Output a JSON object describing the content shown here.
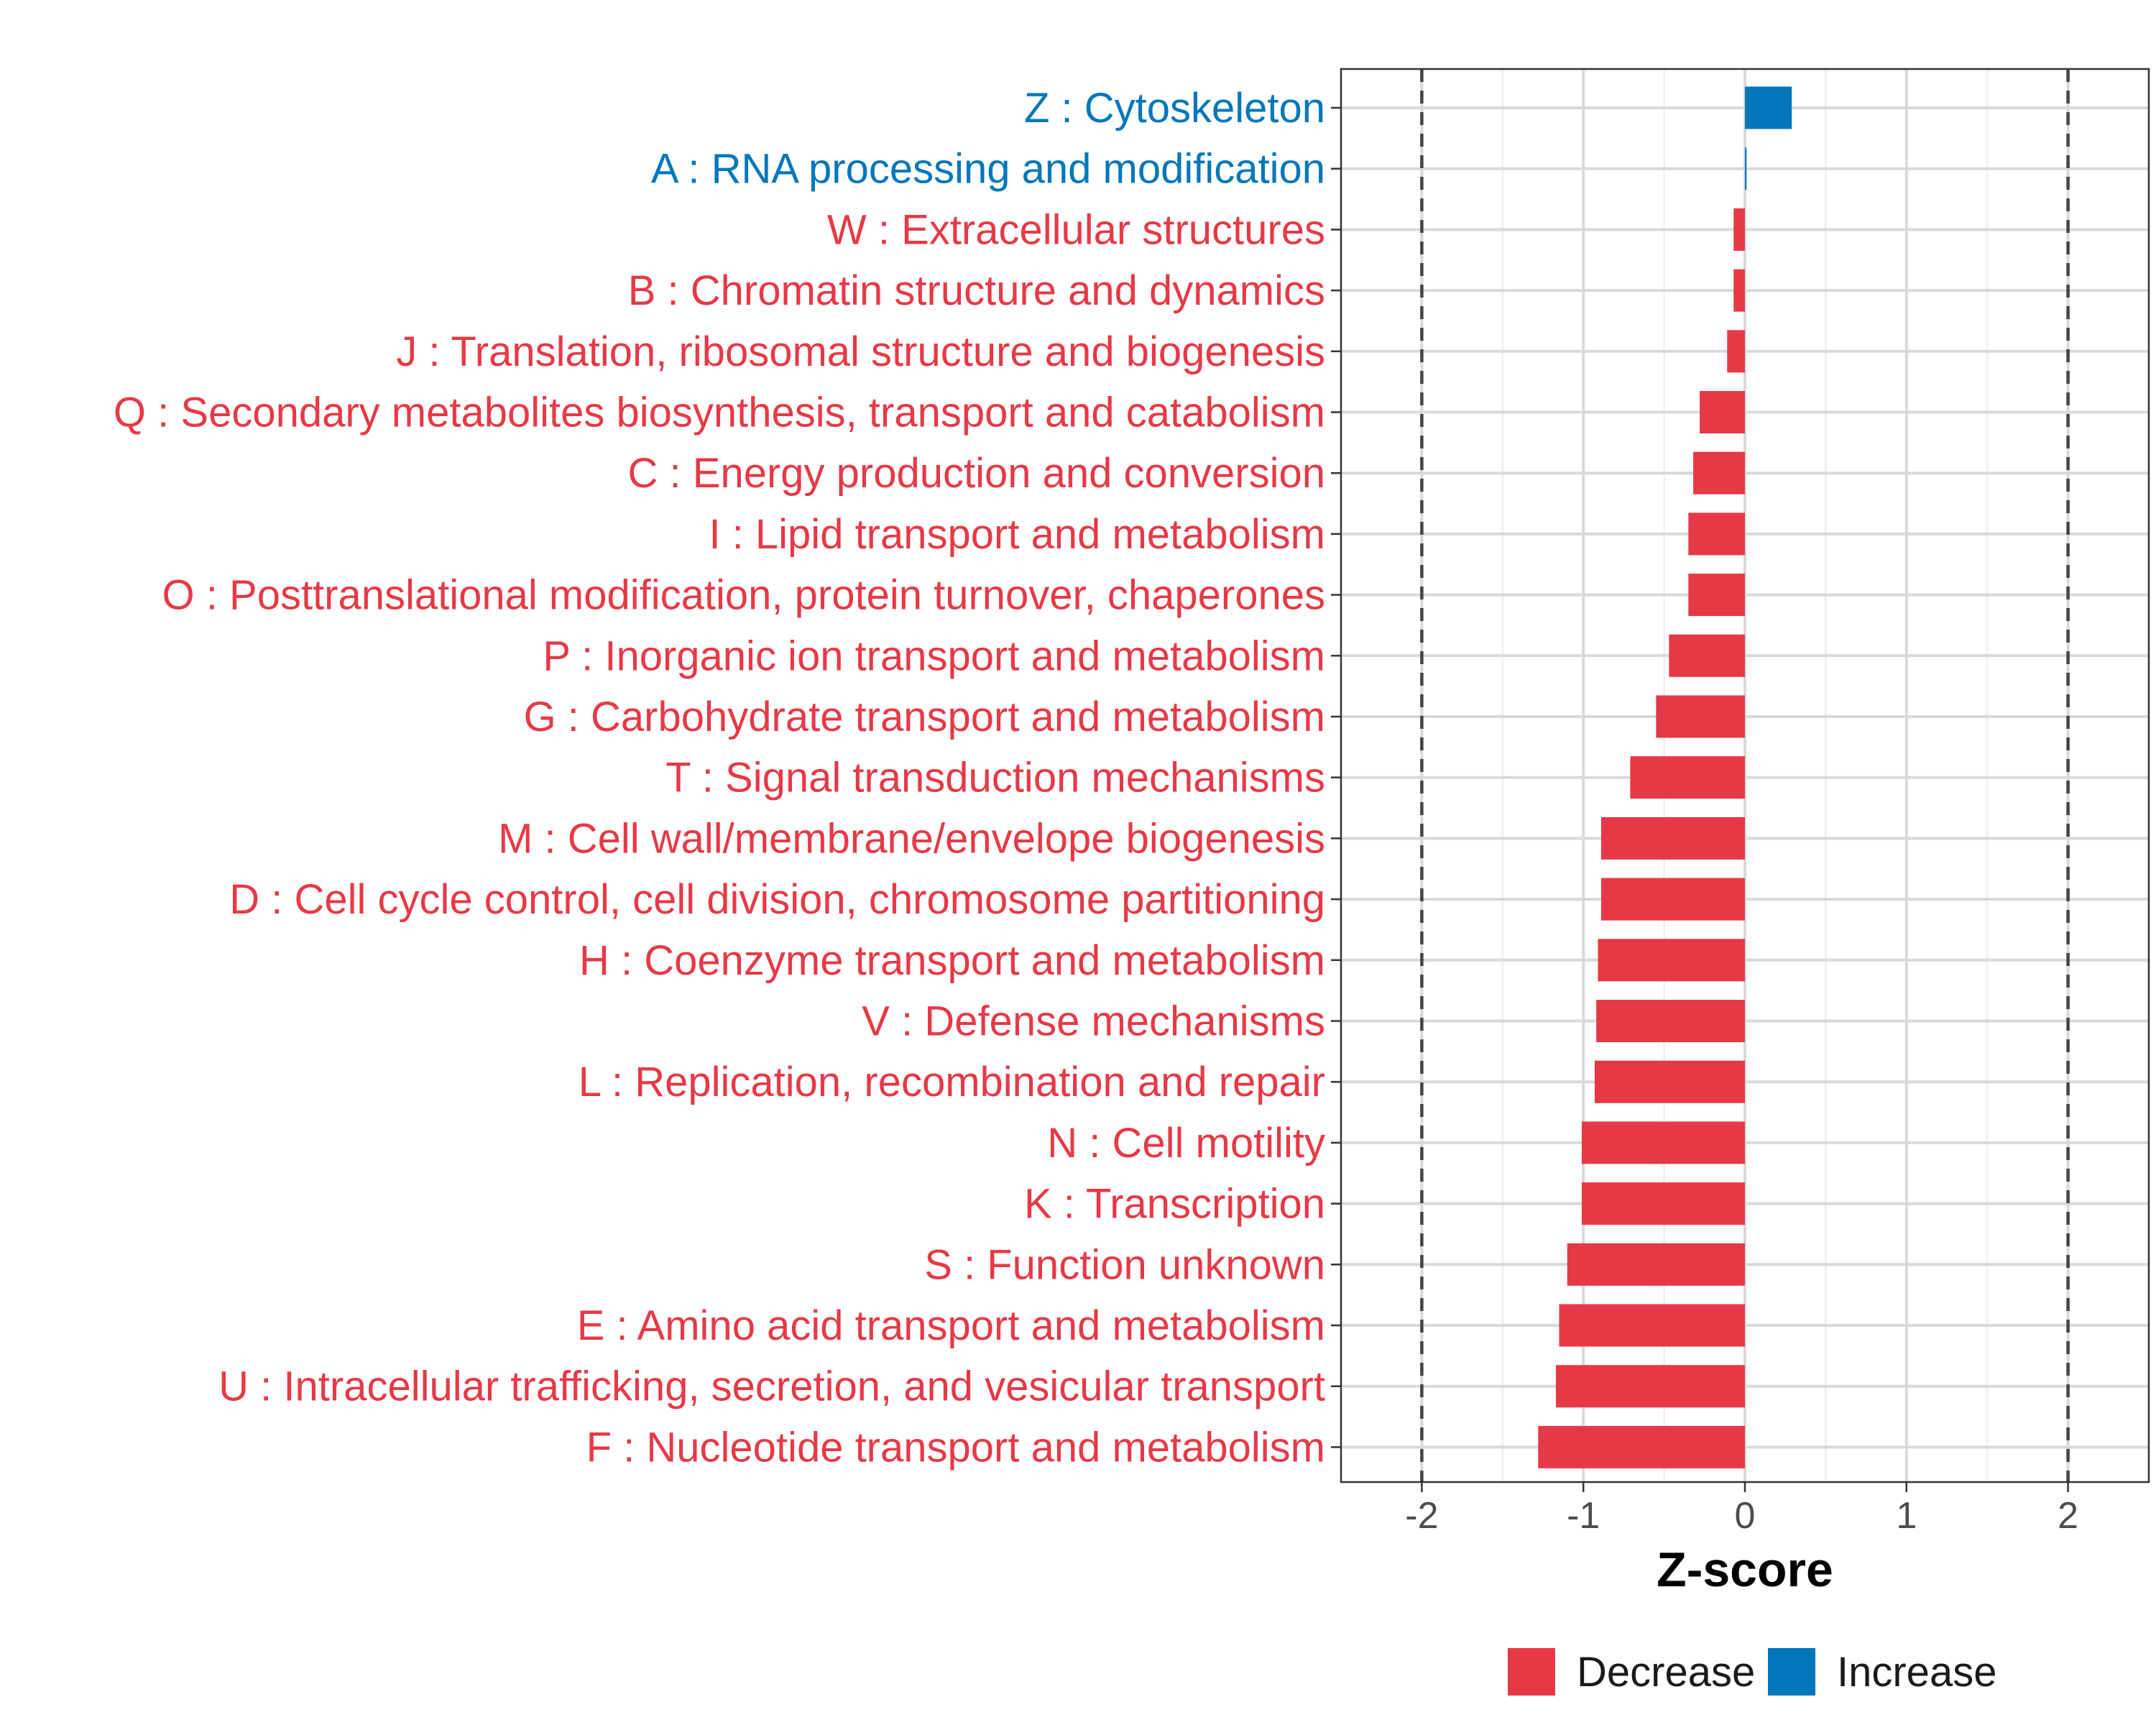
{
  "chart_data": {
    "type": "bar",
    "orientation": "horizontal",
    "xlabel": "Z-score",
    "ylabel": "",
    "xlim": [
      -2.5,
      2.5
    ],
    "xticks": [
      "-2",
      "-1",
      "0",
      "1",
      "2"
    ],
    "xtick_values": [
      -2,
      -1,
      0,
      1,
      2
    ],
    "reference_lines": [
      -2,
      2
    ],
    "grid": true,
    "colors": {
      "Decrease": "#e63946",
      "Increase": "#0077bb"
    },
    "categories": [
      "Z : Cytoskeleton",
      "A : RNA processing and modification",
      "W : Extracellular structures",
      "B : Chromatin structure and dynamics",
      "J : Translation, ribosomal structure and biogenesis",
      "Q : Secondary metabolites biosynthesis, transport and catabolism",
      "C : Energy production and conversion",
      "I : Lipid transport and metabolism",
      "O : Posttranslational modification, protein turnover, chaperones",
      "P : Inorganic ion transport and metabolism",
      "G : Carbohydrate transport and metabolism",
      "T : Signal transduction mechanisms",
      "M : Cell wall/membrane/envelope biogenesis",
      "D : Cell cycle control, cell division, chromosome partitioning",
      "H : Coenzyme transport and metabolism",
      "V : Defense mechanisms",
      "L : Replication, recombination and repair",
      "N : Cell motility",
      "K : Transcription",
      "S : Function unknown",
      "E : Amino acid transport and metabolism",
      "U : Intracellular trafficking, secretion, and vesicular transport",
      "F : Nucleotide transport and metabolism"
    ],
    "values": [
      0.29,
      0.01,
      -0.07,
      -0.07,
      -0.11,
      -0.28,
      -0.32,
      -0.35,
      -0.35,
      -0.47,
      -0.55,
      -0.71,
      -0.89,
      -0.89,
      -0.91,
      -0.92,
      -0.93,
      -1.01,
      -1.01,
      -1.1,
      -1.15,
      -1.17,
      -1.28
    ],
    "groups": [
      "Increase",
      "Increase",
      "Decrease",
      "Decrease",
      "Decrease",
      "Decrease",
      "Decrease",
      "Decrease",
      "Decrease",
      "Decrease",
      "Decrease",
      "Decrease",
      "Decrease",
      "Decrease",
      "Decrease",
      "Decrease",
      "Decrease",
      "Decrease",
      "Decrease",
      "Decrease",
      "Decrease",
      "Decrease",
      "Decrease"
    ],
    "legend": {
      "position": "bottom",
      "entries": [
        {
          "label": "Decrease",
          "color": "#e63946"
        },
        {
          "label": "Increase",
          "color": "#0077bb"
        }
      ]
    }
  }
}
